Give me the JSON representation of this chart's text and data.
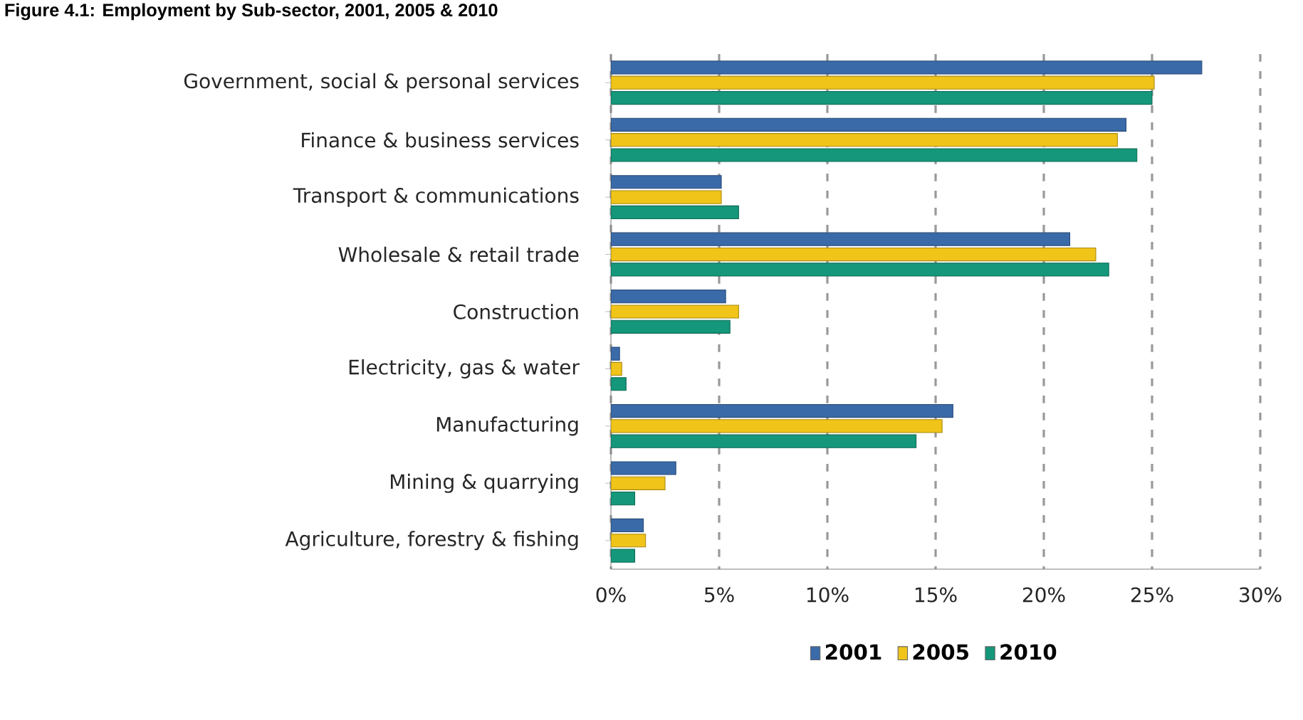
{
  "chart_data": {
    "type": "bar",
    "orientation": "horizontal",
    "title": "Figure 4.1: Employment by Sub-sector, 2001, 2005 & 2010",
    "categories": [
      "Government, social & personal services",
      "Finance & business services",
      "Transport & communications",
      "Wholesale & retail trade",
      "Construction",
      "Electricity, gas & water",
      "Manufacturing",
      "Mining & quarrying",
      "Agriculture, forestry & fishing"
    ],
    "series": [
      {
        "name": "2001",
        "color": "#3a6aa8",
        "values": [
          27.3,
          23.8,
          5.1,
          21.2,
          5.3,
          0.4,
          15.8,
          3.0,
          1.5
        ]
      },
      {
        "name": "2005",
        "color": "#f0c419",
        "values": [
          25.1,
          23.4,
          5.1,
          22.4,
          5.9,
          0.5,
          15.3,
          2.5,
          1.6
        ]
      },
      {
        "name": "2010",
        "color": "#14977a",
        "values": [
          25.0,
          24.3,
          5.9,
          23.0,
          5.5,
          0.7,
          14.1,
          1.1,
          1.1
        ]
      }
    ],
    "xlim": [
      0,
      30
    ],
    "xticks": [
      {
        "value": 0,
        "label": "0%"
      },
      {
        "value": 5,
        "label": "5%"
      },
      {
        "value": 10,
        "label": "10%"
      },
      {
        "value": 15,
        "label": "15%"
      },
      {
        "value": 20,
        "label": "20%"
      },
      {
        "value": 25,
        "label": "25%"
      },
      {
        "value": 30,
        "label": "30%"
      }
    ],
    "grid": "x",
    "legend": "bottom"
  }
}
